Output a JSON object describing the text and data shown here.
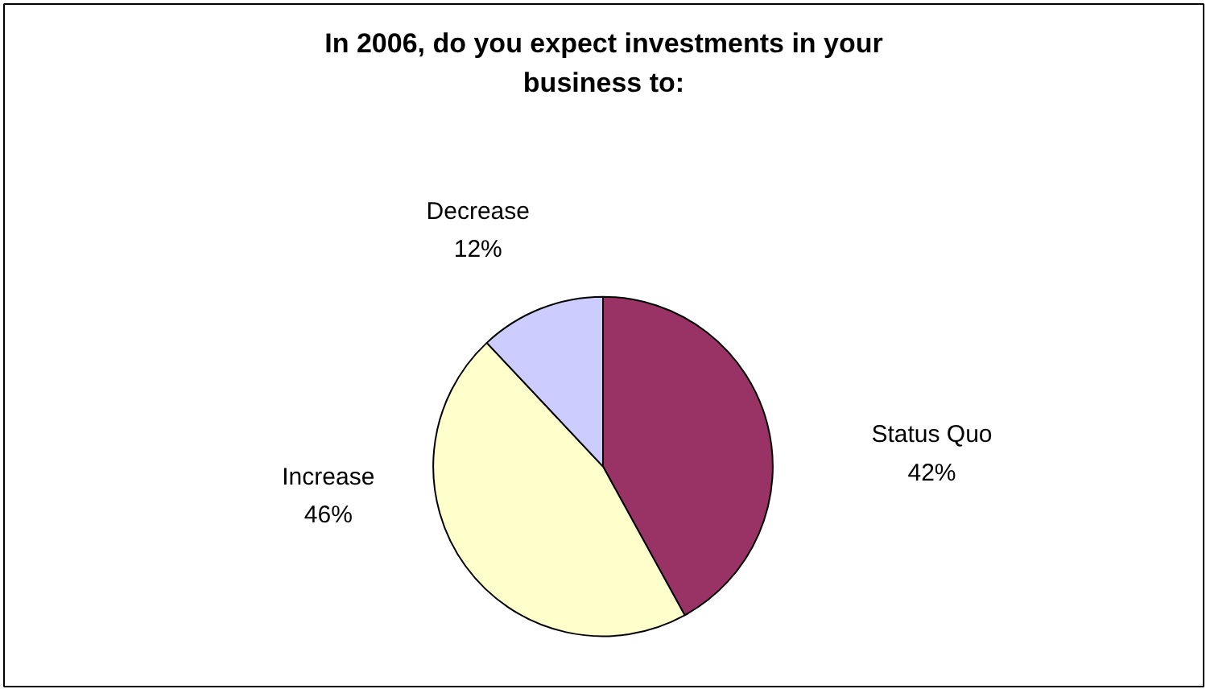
{
  "chart_data": {
    "type": "pie",
    "title": "In 2006, do you expect investments in your business to:",
    "categories": [
      "Status Quo",
      "Increase",
      "Decrease"
    ],
    "values": [
      42,
      46,
      12
    ],
    "value_labels": [
      "42%",
      "46%",
      "12%"
    ],
    "colors": [
      "#993366",
      "#ffffcc",
      "#ccccff"
    ]
  }
}
